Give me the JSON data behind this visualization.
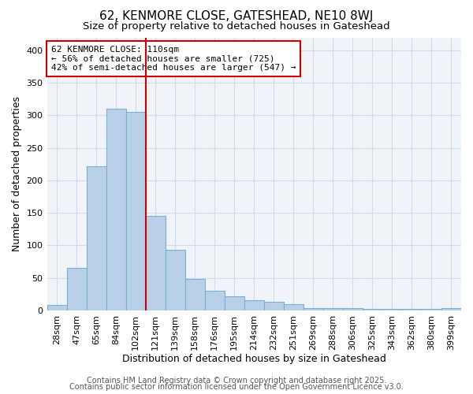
{
  "title": "62, KENMORE CLOSE, GATESHEAD, NE10 8WJ",
  "subtitle": "Size of property relative to detached houses in Gateshead",
  "xlabel": "Distribution of detached houses by size in Gateshead",
  "ylabel": "Number of detached properties",
  "categories": [
    "28sqm",
    "47sqm",
    "65sqm",
    "84sqm",
    "102sqm",
    "121sqm",
    "139sqm",
    "158sqm",
    "176sqm",
    "195sqm",
    "214sqm",
    "232sqm",
    "251sqm",
    "269sqm",
    "288sqm",
    "306sqm",
    "325sqm",
    "343sqm",
    "362sqm",
    "380sqm",
    "399sqm"
  ],
  "values": [
    8,
    65,
    222,
    310,
    305,
    145,
    93,
    48,
    30,
    22,
    16,
    13,
    10,
    4,
    4,
    3,
    2,
    2,
    2,
    2,
    3
  ],
  "bar_color": "#b8d0e8",
  "bar_edge_color": "#7bafd4",
  "background_color": "#f0f4f8",
  "grid_color": "#d0dce8",
  "annotation_box_text": "62 KENMORE CLOSE: 110sqm\n← 56% of detached houses are smaller (725)\n42% of semi-detached houses are larger (547) →",
  "annotation_box_color": "#ffffff",
  "annotation_box_edge_color": "#cc0000",
  "vline_x_index": 4.5,
  "vline_color": "#cc0000",
  "footer1": "Contains HM Land Registry data © Crown copyright and database right 2025.",
  "footer2": "Contains public sector information licensed under the Open Government Licence v3.0.",
  "ylim": [
    0,
    420
  ],
  "yticks": [
    0,
    50,
    100,
    150,
    200,
    250,
    300,
    350,
    400
  ],
  "title_fontsize": 11,
  "subtitle_fontsize": 9.5,
  "xlabel_fontsize": 9,
  "ylabel_fontsize": 9,
  "tick_fontsize": 8,
  "annot_fontsize": 8,
  "footer_fontsize": 7
}
